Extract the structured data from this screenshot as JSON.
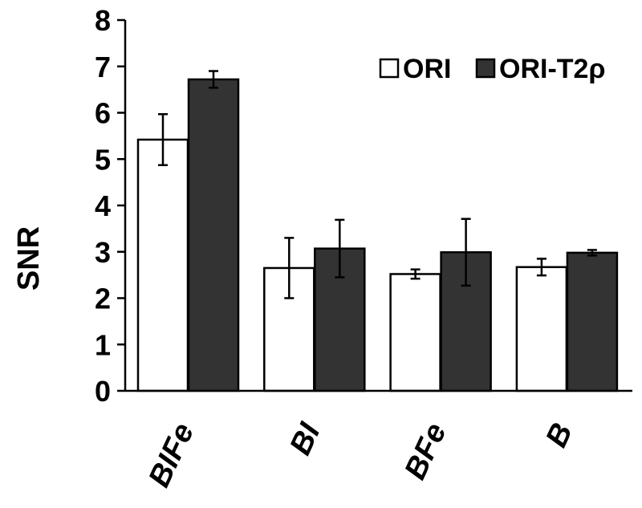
{
  "chart_data": {
    "type": "bar",
    "ylabel": "SNR",
    "xlabel": "",
    "ylim": [
      0,
      8
    ],
    "yticks": [
      "0",
      "1",
      "2",
      "3",
      "4",
      "5",
      "6",
      "7",
      "8"
    ],
    "categories": [
      "BIFe",
      "BI",
      "BFe",
      "B"
    ],
    "series": [
      {
        "name": "ORI",
        "color": "#ffffff",
        "values": [
          5.42,
          2.65,
          2.52,
          2.67
        ],
        "errors": [
          0.55,
          0.65,
          0.1,
          0.18
        ]
      },
      {
        "name": "ORI-T2ρ",
        "color": "#333333",
        "values": [
          6.72,
          3.07,
          2.99,
          2.98
        ],
        "errors": [
          0.18,
          0.62,
          0.72,
          0.06
        ]
      }
    ],
    "legend": "top-right",
    "grid": false
  }
}
